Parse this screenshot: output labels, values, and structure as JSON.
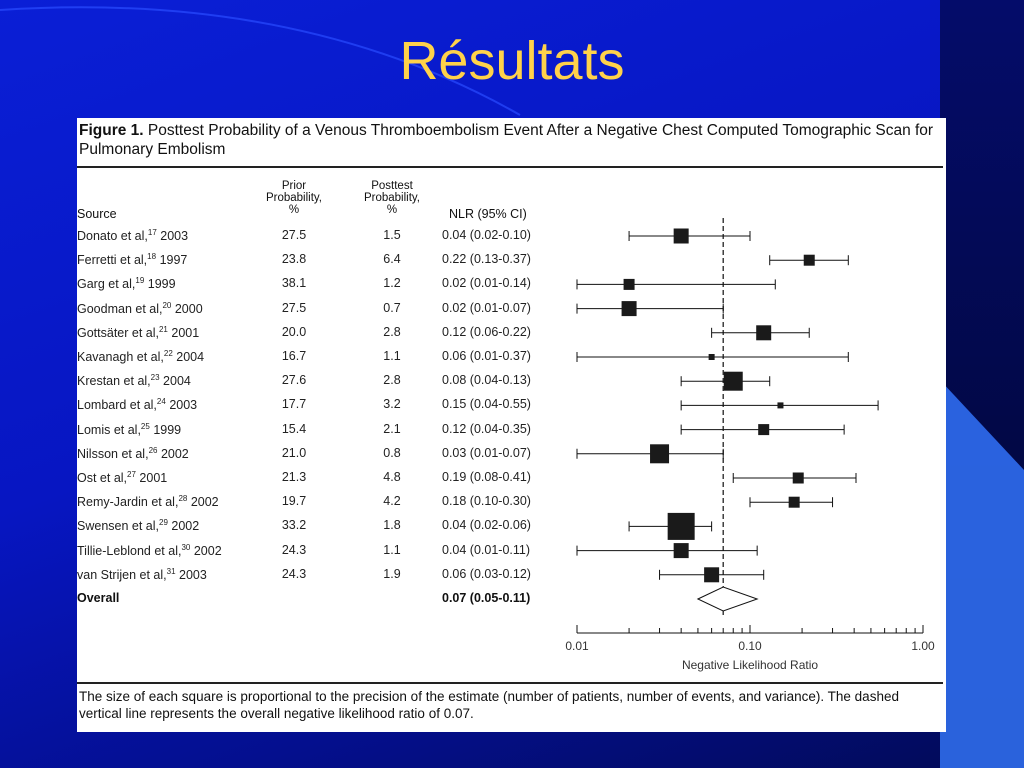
{
  "slide": {
    "title": "Résultats"
  },
  "figure": {
    "label": "Figure 1.",
    "title": "Posttest Probability of a Venous Thromboembolism Event After a Negative Chest Computed Tomographic Scan for Pulmonary Embolism",
    "headers": {
      "source": "Source",
      "prior": [
        "Prior",
        "Probability,",
        "%"
      ],
      "posttest": [
        "Posttest",
        "Probability,",
        "%"
      ],
      "nlr": "NLR (95% CI)"
    },
    "caption": "The size of each square is proportional to the precision of the estimate (number of patients, number of events, and variance). The dashed vertical line represents the overall negative likelihood ratio of 0.07."
  },
  "chart_data": {
    "type": "forest",
    "xlabel": "Negative Likelihood Ratio",
    "xscale": "log",
    "xlim": [
      0.01,
      1.0
    ],
    "xticks": [
      "0.01",
      "0.10",
      "1.00"
    ],
    "reference_line": 0.07,
    "studies": [
      {
        "author": "Donato et al,",
        "ref": "17",
        "year": "2003",
        "prior": "27.5",
        "posttest": "1.5",
        "nlr_text": "0.04 (0.02-0.10)",
        "est": 0.04,
        "lo": 0.02,
        "hi": 0.1,
        "weight": 3
      },
      {
        "author": "Ferretti et al,",
        "ref": "18",
        "year": "1997",
        "prior": "23.8",
        "posttest": "6.4",
        "nlr_text": "0.22 (0.13-0.37)",
        "est": 0.22,
        "lo": 0.13,
        "hi": 0.37,
        "weight": 2
      },
      {
        "author": "Garg et al,",
        "ref": "19",
        "year": "1999",
        "prior": "38.1",
        "posttest": "1.2",
        "nlr_text": "0.02 (0.01-0.14)",
        "est": 0.02,
        "lo": 0.01,
        "hi": 0.14,
        "weight": 2
      },
      {
        "author": "Goodman et al,",
        "ref": "20",
        "year": "2000",
        "prior": "27.5",
        "posttest": "0.7",
        "nlr_text": "0.02 (0.01-0.07)",
        "est": 0.02,
        "lo": 0.01,
        "hi": 0.07,
        "weight": 3
      },
      {
        "author": "Gottsäter et al,",
        "ref": "21",
        "year": "2001",
        "prior": "20.0",
        "posttest": "2.8",
        "nlr_text": "0.12 (0.06-0.22)",
        "est": 0.12,
        "lo": 0.06,
        "hi": 0.22,
        "weight": 3
      },
      {
        "author": "Kavanagh et al,",
        "ref": "22",
        "year": "2004",
        "prior": "16.7",
        "posttest": "1.1",
        "nlr_text": "0.06 (0.01-0.37)",
        "est": 0.06,
        "lo": 0.01,
        "hi": 0.37,
        "weight": 1
      },
      {
        "author": "Krestan et al,",
        "ref": "23",
        "year": "2004",
        "prior": "27.6",
        "posttest": "2.8",
        "nlr_text": "0.08 (0.04-0.13)",
        "est": 0.08,
        "lo": 0.04,
        "hi": 0.13,
        "weight": 4
      },
      {
        "author": "Lombard et al,",
        "ref": "24",
        "year": "2003",
        "prior": "17.7",
        "posttest": "3.2",
        "nlr_text": "0.15 (0.04-0.55)",
        "est": 0.15,
        "lo": 0.04,
        "hi": 0.55,
        "weight": 1
      },
      {
        "author": "Lomis et al,",
        "ref": "25",
        "year": "1999",
        "prior": "15.4",
        "posttest": "2.1",
        "nlr_text": "0.12 (0.04-0.35)",
        "est": 0.12,
        "lo": 0.04,
        "hi": 0.35,
        "weight": 2
      },
      {
        "author": "Nilsson et al,",
        "ref": "26",
        "year": "2002",
        "prior": "21.0",
        "posttest": "0.8",
        "nlr_text": "0.03 (0.01-0.07)",
        "est": 0.03,
        "lo": 0.01,
        "hi": 0.07,
        "weight": 4
      },
      {
        "author": "Ost et al,",
        "ref": "27",
        "year": "2001",
        "prior": "21.3",
        "posttest": "4.8",
        "nlr_text": "0.19 (0.08-0.41)",
        "est": 0.19,
        "lo": 0.08,
        "hi": 0.41,
        "weight": 2
      },
      {
        "author": "Remy-Jardin et al,",
        "ref": "28",
        "year": "2002",
        "prior": "19.7",
        "posttest": "4.2",
        "nlr_text": "0.18 (0.10-0.30)",
        "est": 0.18,
        "lo": 0.1,
        "hi": 0.3,
        "weight": 2
      },
      {
        "author": "Swensen et al,",
        "ref": "29",
        "year": "2002",
        "prior": "33.2",
        "posttest": "1.8",
        "nlr_text": "0.04 (0.02-0.06)",
        "est": 0.04,
        "lo": 0.02,
        "hi": 0.06,
        "weight": 5
      },
      {
        "author": "Tillie-Leblond et al,",
        "ref": "30",
        "year": "2002",
        "prior": "24.3",
        "posttest": "1.1",
        "nlr_text": "0.04 (0.01-0.11)",
        "est": 0.04,
        "lo": 0.01,
        "hi": 0.11,
        "weight": 3
      },
      {
        "author": "van Strijen et al,",
        "ref": "31",
        "year": "2003",
        "prior": "24.3",
        "posttest": "1.9",
        "nlr_text": "0.06 (0.03-0.12)",
        "est": 0.06,
        "lo": 0.03,
        "hi": 0.12,
        "weight": 3
      }
    ],
    "overall": {
      "label": "Overall",
      "nlr_text": "0.07 (0.05-0.11)",
      "est": 0.07,
      "lo": 0.05,
      "hi": 0.11
    }
  }
}
